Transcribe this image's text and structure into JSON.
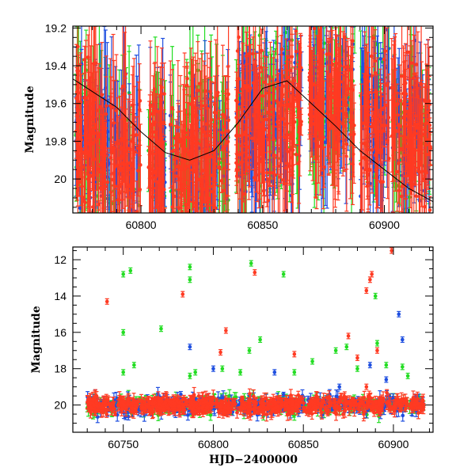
{
  "chart_data": [
    {
      "type": "scatter",
      "panel": "top",
      "ylabel": "Magnitude",
      "xlabel": "",
      "xlim": [
        60772,
        60920
      ],
      "ylim": [
        20.18,
        19.19
      ],
      "y_inverted": true,
      "xticks": [
        60800,
        60850,
        60900
      ],
      "yticks": [
        19.2,
        19.4,
        19.6,
        19.8,
        20
      ],
      "series": [
        {
          "color": "#22dd22",
          "marker": "dot-errorbar"
        },
        {
          "color": "#1f4fe0",
          "marker": "dot-errorbar"
        },
        {
          "color": "#ff3a22",
          "marker": "dot-errorbar"
        }
      ],
      "model_curve": {
        "color": "#000000",
        "x": [
          60772,
          60790,
          60800,
          60810,
          60820,
          60830,
          60840,
          60850,
          60860,
          60870,
          60880,
          60890,
          60900,
          60910,
          60920
        ],
        "y": [
          19.47,
          19.62,
          19.75,
          19.86,
          19.9,
          19.85,
          19.7,
          19.52,
          19.48,
          19.6,
          19.72,
          19.85,
          19.95,
          20.05,
          20.12
        ]
      }
    },
    {
      "type": "scatter",
      "panel": "bottom",
      "ylabel": "Magnitude",
      "xlabel": "HJD−2400000",
      "xlim": [
        60722,
        60922
      ],
      "ylim": [
        21.5,
        11.3
      ],
      "y_inverted": true,
      "xticks": [
        60750,
        60800,
        60850,
        60900
      ],
      "yticks": [
        12,
        14,
        16,
        18,
        20
      ],
      "baseline_mag": 20.0,
      "series": [
        {
          "color": "#22dd22",
          "outliers": [
            {
              "x": 60750,
              "y": 12.8
            },
            {
              "x": 60754,
              "y": 12.6
            },
            {
              "x": 60750,
              "y": 16.0
            },
            {
              "x": 60756,
              "y": 17.8
            },
            {
              "x": 60750,
              "y": 18.2
            },
            {
              "x": 60771,
              "y": 15.8
            },
            {
              "x": 60787,
              "y": 12.4
            },
            {
              "x": 60787,
              "y": 13.1
            },
            {
              "x": 60787,
              "y": 18.4
            },
            {
              "x": 60790,
              "y": 18.2
            },
            {
              "x": 60805,
              "y": 18.0
            },
            {
              "x": 60815,
              "y": 18.2
            },
            {
              "x": 60821,
              "y": 12.2
            },
            {
              "x": 60820,
              "y": 17.0
            },
            {
              "x": 60826,
              "y": 16.4
            },
            {
              "x": 60839,
              "y": 12.8
            },
            {
              "x": 60845,
              "y": 18.2
            },
            {
              "x": 60855,
              "y": 17.6
            },
            {
              "x": 60868,
              "y": 17.0
            },
            {
              "x": 60874,
              "y": 16.8
            },
            {
              "x": 60880,
              "y": 18.0
            },
            {
              "x": 60890,
              "y": 14.0
            },
            {
              "x": 60891,
              "y": 16.6
            },
            {
              "x": 60896,
              "y": 17.8
            },
            {
              "x": 60905,
              "y": 17.9
            },
            {
              "x": 60908,
              "y": 18.4
            }
          ]
        },
        {
          "color": "#1f4fe0",
          "outliers": [
            {
              "x": 60787,
              "y": 16.8
            },
            {
              "x": 60800,
              "y": 18.0
            },
            {
              "x": 60834,
              "y": 18.2
            },
            {
              "x": 60887,
              "y": 17.8
            },
            {
              "x": 60903,
              "y": 15.0
            },
            {
              "x": 60905,
              "y": 16.4
            },
            {
              "x": 60870,
              "y": 19.0
            },
            {
              "x": 60896,
              "y": 18.6
            }
          ]
        },
        {
          "color": "#ff3a22",
          "outliers": [
            {
              "x": 60741,
              "y": 14.3
            },
            {
              "x": 60783,
              "y": 13.9
            },
            {
              "x": 60804,
              "y": 17.1
            },
            {
              "x": 60807,
              "y": 15.9
            },
            {
              "x": 60823,
              "y": 12.7
            },
            {
              "x": 60845,
              "y": 17.2
            },
            {
              "x": 60875,
              "y": 16.2
            },
            {
              "x": 60880,
              "y": 17.4
            },
            {
              "x": 60885,
              "y": 13.7
            },
            {
              "x": 60887,
              "y": 13.1
            },
            {
              "x": 60888,
              "y": 12.8
            },
            {
              "x": 60891,
              "y": 17.0
            },
            {
              "x": 60899,
              "y": 11.5
            },
            {
              "x": 60885,
              "y": 19.0
            }
          ]
        }
      ]
    }
  ]
}
